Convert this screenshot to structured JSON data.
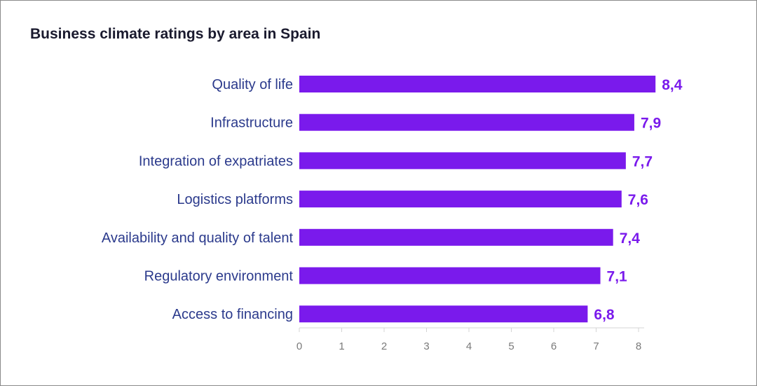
{
  "chart_data": {
    "type": "bar",
    "orientation": "horizontal",
    "title": "Business climate ratings by area in Spain",
    "categories": [
      "Quality of life",
      "Infrastructure",
      "Integration of expatriates",
      "Logistics platforms",
      "Availability and quality of talent",
      "Regulatory environment",
      "Access to financing"
    ],
    "values": [
      8.4,
      7.9,
      7.7,
      7.6,
      7.4,
      7.1,
      6.8
    ],
    "value_labels": [
      "8,4",
      "7,9",
      "7,7",
      "7,6",
      "7,4",
      "7,1",
      "6,8"
    ],
    "xticks": [
      "0",
      "1",
      "2",
      "3",
      "4",
      "5",
      "6",
      "7",
      "8"
    ],
    "xlim": [
      0,
      8.5
    ],
    "grid": false,
    "bar_color": "#7a1aec",
    "label_color": "#2b3a8c"
  }
}
